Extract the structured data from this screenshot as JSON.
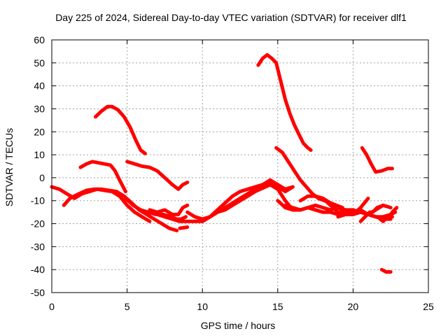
{
  "chart_data": {
    "type": "line",
    "title": "Day 225 of 2024, Sidereal Day-to-day VTEC variation (SDTVAR) for receiver dlf1",
    "xlabel": "GPS time / hours",
    "ylabel": "SDTVAR / TECUs",
    "xlim": [
      0,
      25
    ],
    "ylim": [
      -50,
      60
    ],
    "xticks": [
      0,
      5,
      10,
      15,
      20,
      25
    ],
    "yticks": [
      -50,
      -40,
      -30,
      -20,
      -10,
      0,
      10,
      20,
      30,
      40,
      50,
      60
    ],
    "grid": true,
    "legend": "none",
    "color": "#ff0000",
    "series": [
      {
        "name": "s1",
        "x": [
          0.0,
          0.5,
          1.0,
          1.5,
          2.0,
          2.5,
          3.0,
          3.5,
          4.0,
          4.5,
          5.0,
          5.5,
          6.0,
          6.5
        ],
        "y": [
          -4,
          -5,
          -7,
          -9,
          -7,
          -6,
          -5,
          -5.5,
          -6,
          -8,
          -12,
          -15,
          -17,
          -19
        ]
      },
      {
        "name": "s2",
        "x": [
          0.8,
          1.2,
          1.8,
          2.3,
          2.8,
          3.3,
          3.8,
          4.3,
          4.8,
          5.3,
          5.8,
          6.3,
          6.8,
          7.3,
          7.8,
          8.3
        ],
        "y": [
          -12,
          -9,
          -7,
          -5.5,
          -5,
          -5,
          -5.5,
          -6,
          -8,
          -11,
          -14,
          -16,
          -18,
          -20,
          -22,
          -23
        ]
      },
      {
        "name": "s3",
        "x": [
          1.9,
          2.3,
          2.7,
          3.1,
          3.5,
          3.9,
          4.2,
          4.5,
          4.9
        ],
        "y": [
          4.5,
          6,
          7,
          6.5,
          6,
          5.5,
          3,
          -1,
          -6
        ]
      },
      {
        "name": "s4",
        "x": [
          2.9,
          3.3,
          3.7,
          4.0,
          4.4,
          4.8,
          5.2,
          5.6,
          5.9,
          6.2
        ],
        "y": [
          26.5,
          29,
          31,
          31,
          29.5,
          26.5,
          22,
          16,
          12,
          10.5
        ]
      },
      {
        "name": "s5",
        "x": [
          4.9,
          5.4,
          5.9,
          6.4,
          6.9,
          7.4,
          7.9,
          8.3,
          8.6,
          8.9
        ],
        "y": [
          -9,
          -12,
          -14,
          -15,
          -16,
          -16,
          -17,
          -18,
          -18,
          -17
        ]
      },
      {
        "name": "s6",
        "x": [
          5.0,
          5.5,
          6.0,
          6.5,
          7.0,
          7.5,
          8.0,
          8.4,
          8.7,
          9.0
        ],
        "y": [
          7,
          6,
          5,
          4.5,
          3,
          0,
          -3,
          -5,
          -3,
          -2
        ]
      },
      {
        "name": "s7",
        "x": [
          6.5,
          7.0,
          7.5,
          8.0,
          8.4,
          8.7,
          9.0
        ],
        "y": [
          -14,
          -15,
          -14,
          -16,
          -16,
          -13,
          -12
        ]
      },
      {
        "name": "s8",
        "x": [
          7.0,
          7.5,
          8.0,
          8.5,
          9.0,
          9.5,
          10.0,
          10.5,
          11.0,
          11.5,
          12.0,
          12.5,
          13.0,
          13.5,
          14.0,
          14.5,
          15.0,
          15.5,
          16.0
        ],
        "y": [
          -16,
          -17,
          -18,
          -19,
          -19,
          -19,
          -19,
          -17,
          -15,
          -13,
          -11,
          -9,
          -7,
          -5,
          -3,
          -2,
          -4,
          -6,
          -4
        ]
      },
      {
        "name": "s9",
        "x": [
          8.5,
          9.0
        ],
        "y": [
          -22,
          -21.5
        ]
      },
      {
        "name": "s10",
        "x": [
          9.0,
          9.5,
          10.0,
          10.5,
          11.0,
          11.5,
          12.0,
          12.5,
          13.0,
          13.5,
          14.0,
          14.5,
          15.0,
          15.5,
          16.0
        ],
        "y": [
          -15,
          -17,
          -18,
          -17,
          -14,
          -11,
          -8,
          -6,
          -5,
          -4,
          -3,
          -1,
          -3,
          -5,
          -4
        ]
      },
      {
        "name": "s11",
        "x": [
          10.0,
          10.5,
          11.0,
          11.5,
          12.0,
          12.5,
          13.0,
          13.5,
          14.0,
          14.5,
          15.0,
          15.5,
          16.0,
          16.5,
          17.0,
          17.5,
          18.0
        ],
        "y": [
          -19,
          -17,
          -15,
          -14,
          -12,
          -10,
          -8,
          -6,
          -4.5,
          -3,
          -5,
          -10,
          -14,
          -14,
          -13,
          -14,
          -15
        ]
      },
      {
        "name": "s12",
        "x": [
          13.7,
          14.0,
          14.3,
          14.6,
          14.9,
          15.2,
          15.5,
          15.8,
          16.1,
          16.4,
          16.7,
          17.0,
          17.2
        ],
        "y": [
          49,
          52,
          53.5,
          52,
          50,
          42,
          34,
          28,
          23,
          19,
          15,
          13,
          12
        ]
      },
      {
        "name": "s13",
        "x": [
          14.9,
          15.3,
          15.7,
          16.1,
          16.5,
          16.9,
          17.3,
          17.7,
          18.1,
          18.5,
          18.9,
          19.3
        ],
        "y": [
          13,
          11,
          7,
          3,
          -1,
          -4,
          -7,
          -9,
          -10,
          -11,
          -12,
          -13
        ]
      },
      {
        "name": "s14",
        "x": [
          15.0,
          15.5,
          16.0,
          16.5,
          17.0,
          17.5,
          18.0,
          18.5,
          19.0,
          19.5,
          20.0,
          20.5,
          21.0,
          21.5,
          22.0,
          22.5
        ],
        "y": [
          -10,
          -13,
          -14,
          -14,
          -13,
          -14,
          -15,
          -15,
          -16,
          -16,
          -16,
          -15,
          -16,
          -17,
          -18,
          -18
        ]
      },
      {
        "name": "s15",
        "x": [
          15.5,
          16.0,
          16.5,
          17.0,
          17.5,
          18.0,
          18.5,
          19.0,
          19.5,
          20.0,
          20.5,
          21.0,
          21.5,
          22.0,
          22.5,
          22.8
        ],
        "y": [
          -12,
          -13,
          -14,
          -13,
          -12,
          -13,
          -14,
          -13,
          -14,
          -14,
          -15,
          -16,
          -17,
          -17,
          -16,
          -15
        ]
      },
      {
        "name": "s16",
        "x": [
          16.5,
          17.0,
          17.5,
          18.0,
          18.5,
          19.0,
          19.5,
          20.0,
          20.5,
          21.0
        ],
        "y": [
          -10,
          -8,
          -8,
          -9,
          -11,
          -13,
          -15,
          -16,
          -13,
          -9
        ]
      },
      {
        "name": "s17",
        "x": [
          18.0,
          18.5,
          19.0,
          19.5,
          20.0,
          20.5,
          21.0,
          21.5,
          22.0
        ],
        "y": [
          -9,
          -12,
          -15,
          -16,
          -15,
          -14,
          -16,
          -14,
          -12
        ]
      },
      {
        "name": "s18",
        "x": [
          19.0,
          19.5,
          20.0
        ],
        "y": [
          -17,
          -16,
          -14
        ]
      },
      {
        "name": "s19",
        "x": [
          20.5,
          20.8,
          21.1,
          21.3,
          21.6,
          22.0,
          22.5
        ],
        "y": [
          -19,
          -17,
          -15,
          -15,
          -13,
          -12,
          -13
        ]
      },
      {
        "name": "s20",
        "x": [
          20.6,
          20.9,
          21.2,
          21.5,
          21.9,
          22.3,
          22.6
        ],
        "y": [
          13,
          10,
          6,
          2.5,
          3,
          4,
          4
        ]
      },
      {
        "name": "s21",
        "x": [
          21.8,
          22.0,
          22.3,
          22.6
        ],
        "y": [
          -18,
          -19,
          -17,
          -17
        ]
      },
      {
        "name": "s22",
        "x": [
          22.4,
          22.6,
          22.9
        ],
        "y": [
          -17,
          -15,
          -13
        ]
      },
      {
        "name": "s23",
        "x": [
          21.9,
          22.2,
          22.5
        ],
        "y": [
          -40,
          -41,
          -41
        ]
      }
    ]
  }
}
